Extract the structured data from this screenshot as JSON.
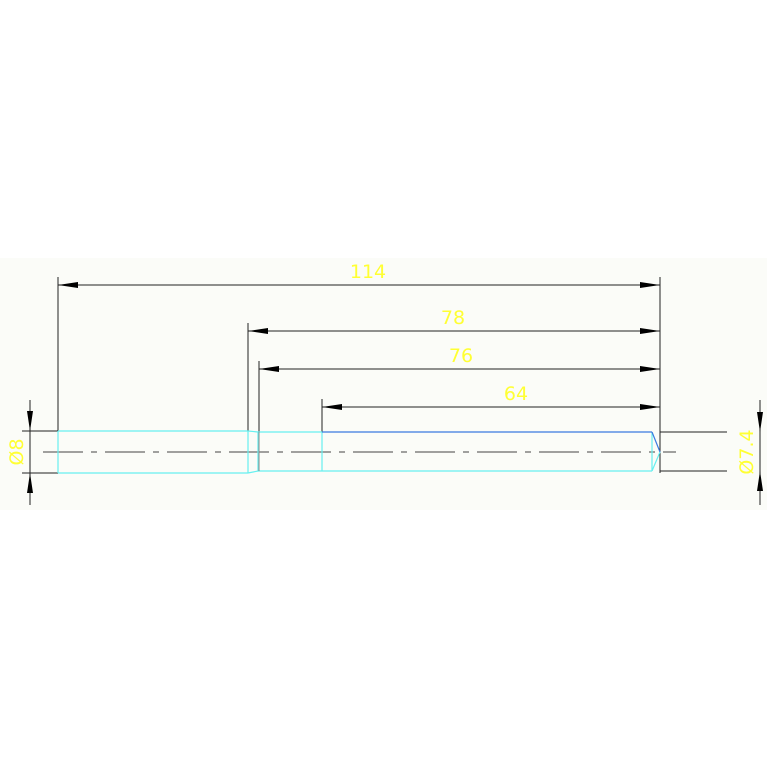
{
  "drawing": {
    "dimensions": {
      "overall_length": "114",
      "length_78": "78",
      "length_76": "76",
      "length_64": "64",
      "left_diameter": "Ø8",
      "right_diameter": "Ø7.4"
    },
    "colors": {
      "outline": "#66f0f0",
      "edge_blue": "#3a7ae0",
      "dimension_line": "#222222",
      "dimension_text": "#ffff33",
      "background_band": "#fbfcf8"
    }
  }
}
